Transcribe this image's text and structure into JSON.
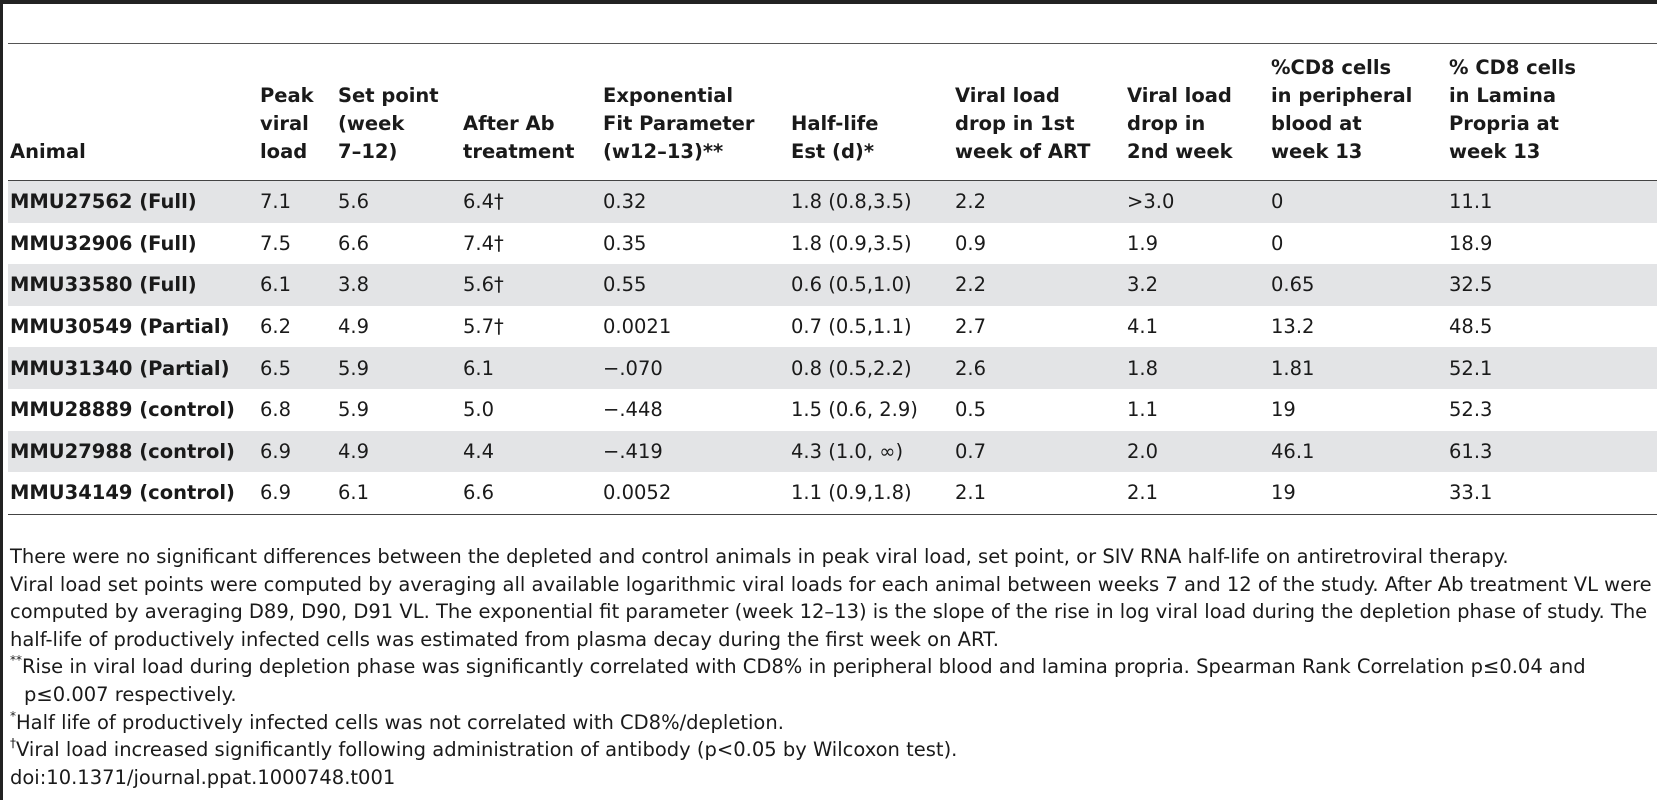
{
  "table": {
    "headers": [
      "Animal",
      "Peak\nviral\nload",
      "Set point\n(week\n7–12)",
      "After Ab\ntreatment",
      "Exponential\nFit Parameter\n(w12–13)**",
      "Half-life\nEst (d)*",
      "Viral load\ndrop in 1st\nweek of ART",
      "Viral load\ndrop in\n2nd week",
      "%CD8 cells\nin peripheral\nblood at\nweek 13",
      "% CD8 cells\nin Lamina\nPropria at\nweek 13"
    ],
    "rows": [
      [
        "MMU27562 (Full)",
        "7.1",
        "5.6",
        "6.4†",
        "0.32",
        "1.8 (0.8,3.5)",
        "2.2",
        ">3.0",
        "0",
        "11.1"
      ],
      [
        "MMU32906 (Full)",
        "7.5",
        "6.6",
        "7.4†",
        "0.35",
        "1.8 (0.9,3.5)",
        "0.9",
        "1.9",
        "0",
        "18.9"
      ],
      [
        "MMU33580 (Full)",
        "6.1",
        "3.8",
        "5.6†",
        "0.55",
        "0.6 (0.5,1.0)",
        "2.2",
        "3.2",
        "0.65",
        "32.5"
      ],
      [
        "MMU30549 (Partial)",
        "6.2",
        "4.9",
        "5.7†",
        "0.0021",
        "0.7 (0.5,1.1)",
        "2.7",
        "4.1",
        "13.2",
        "48.5"
      ],
      [
        "MMU31340 (Partial)",
        "6.5",
        "5.9",
        "6.1",
        "−.070",
        "0.8 (0.5,2.2)",
        "2.6",
        "1.8",
        "1.81",
        "52.1"
      ],
      [
        "MMU28889 (control)",
        "6.8",
        "5.9",
        "5.0",
        "−.448",
        "1.5 (0.6, 2.9)",
        "0.5",
        "1.1",
        "19",
        "52.3"
      ],
      [
        "MMU27988 (control)",
        "6.9",
        "4.9",
        "4.4",
        "−.419",
        "4.3 (1.0, ∞)",
        "0.7",
        "2.0",
        "46.1",
        "61.3"
      ],
      [
        "MMU34149 (control)",
        "6.9",
        "6.1",
        "6.6",
        "0.0052",
        "1.1 (0.9,1.8)",
        "2.1",
        "2.1",
        "19",
        "33.1"
      ]
    ]
  },
  "notes": {
    "summary": "There were no significant differences between the depleted and control animals in peak viral load, set point, or SIV RNA half-life on antiretroviral therapy.",
    "methods": "Viral load set points were computed by averaging all available logarithmic viral loads for each animal between weeks 7 and 12 of the study. After Ab treatment VL were computed by averaging D89, D90, D91 VL. The exponential fit parameter (week 12–13) is the slope of the rise in log viral load during the depletion phase of study. The half-life of productively infected cells was estimated from plasma decay during the first week on ART.",
    "fn1_mark": "**",
    "fn1_text": "Rise in viral load during depletion phase was significantly correlated with CD8% in peripheral blood and lamina propria. Spearman Rank Correlation p≤0.04 and p≤0.007 respectively.",
    "fn2_mark": "*",
    "fn2_text": "Half life of productively infected cells was not correlated with CD8%/depletion.",
    "fn3_mark": "†",
    "fn3_text": "Viral load increased significantly following administration of antibody (p<0.05 by Wilcoxon test).",
    "doi": "doi:10.1371/journal.ppat.1000748.t001"
  }
}
